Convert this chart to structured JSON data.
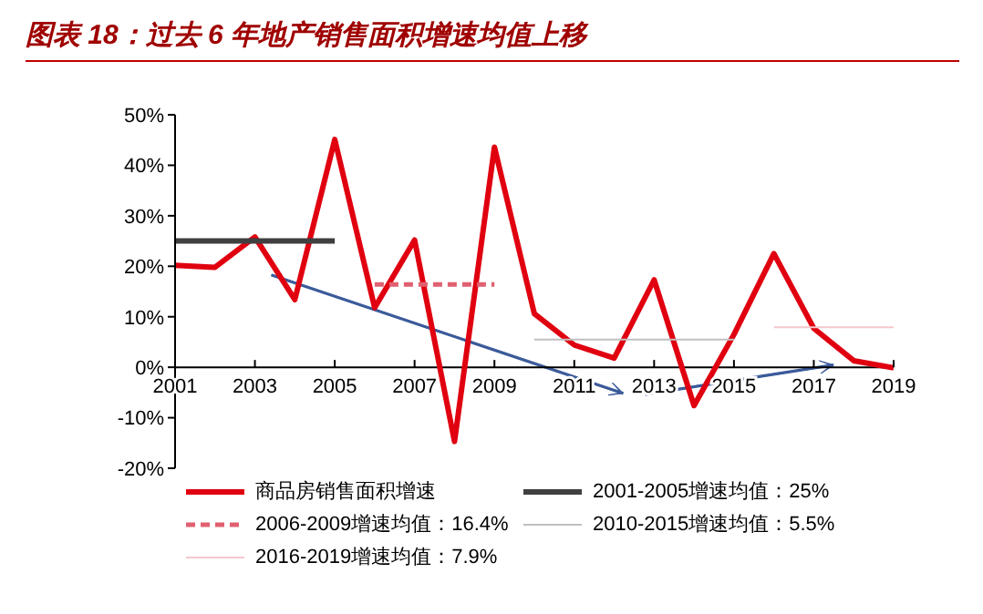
{
  "chart_data": {
    "type": "line",
    "title": "图表 18：过去 6 年地产销售面积增速均值上移",
    "x": [
      2001,
      2002,
      2003,
      2004,
      2005,
      2006,
      2007,
      2008,
      2009,
      2010,
      2011,
      2012,
      2013,
      2014,
      2015,
      2016,
      2017,
      2018,
      2019
    ],
    "series": [
      {
        "name": "商品房销售面积增速",
        "color": "#e00010",
        "values": [
          20.2,
          19.8,
          25.8,
          13.4,
          45.1,
          11.8,
          25.2,
          -14.7,
          43.6,
          10.6,
          4.4,
          1.8,
          17.3,
          -7.6,
          6.5,
          22.5,
          7.7,
          1.3,
          -0.1
        ]
      },
      {
        "name": "2001-2005增速均值：25%",
        "color": "#404040",
        "x": [
          2001,
          2005
        ],
        "values": [
          25,
          25
        ]
      },
      {
        "name": "2006-2009增速均值：16.4%",
        "color": "#e06070",
        "x": [
          2006,
          2009
        ],
        "values": [
          16.4,
          16.4
        ],
        "line_style": "dashed"
      },
      {
        "name": "2010-2015增速均值：5.5%",
        "color": "#c0c0c0",
        "x": [
          2010,
          2015
        ],
        "values": [
          5.5,
          5.5
        ]
      },
      {
        "name": "2016-2019增速均值：7.9%",
        "color": "#f4c8cc",
        "x": [
          2016,
          2019
        ],
        "values": [
          7.9,
          7.9
        ]
      }
    ],
    "xlim": [
      2001,
      2019
    ],
    "xticks": [
      2001,
      2003,
      2005,
      2007,
      2009,
      2011,
      2013,
      2015,
      2017,
      2019
    ],
    "ylim": [
      -20,
      50
    ],
    "yticks": [
      {
        "value": -20,
        "label": "-20%"
      },
      {
        "value": -10,
        "label": "-10%"
      },
      {
        "value": 0,
        "label": "0%"
      },
      {
        "value": 10,
        "label": "10%"
      },
      {
        "value": 20,
        "label": "20%"
      },
      {
        "value": 30,
        "label": "30%"
      },
      {
        "value": 40,
        "label": "40%"
      },
      {
        "value": 50,
        "label": "50%"
      }
    ],
    "grid": false,
    "legend": "bottom",
    "marker": "none",
    "line_style": "solid"
  }
}
